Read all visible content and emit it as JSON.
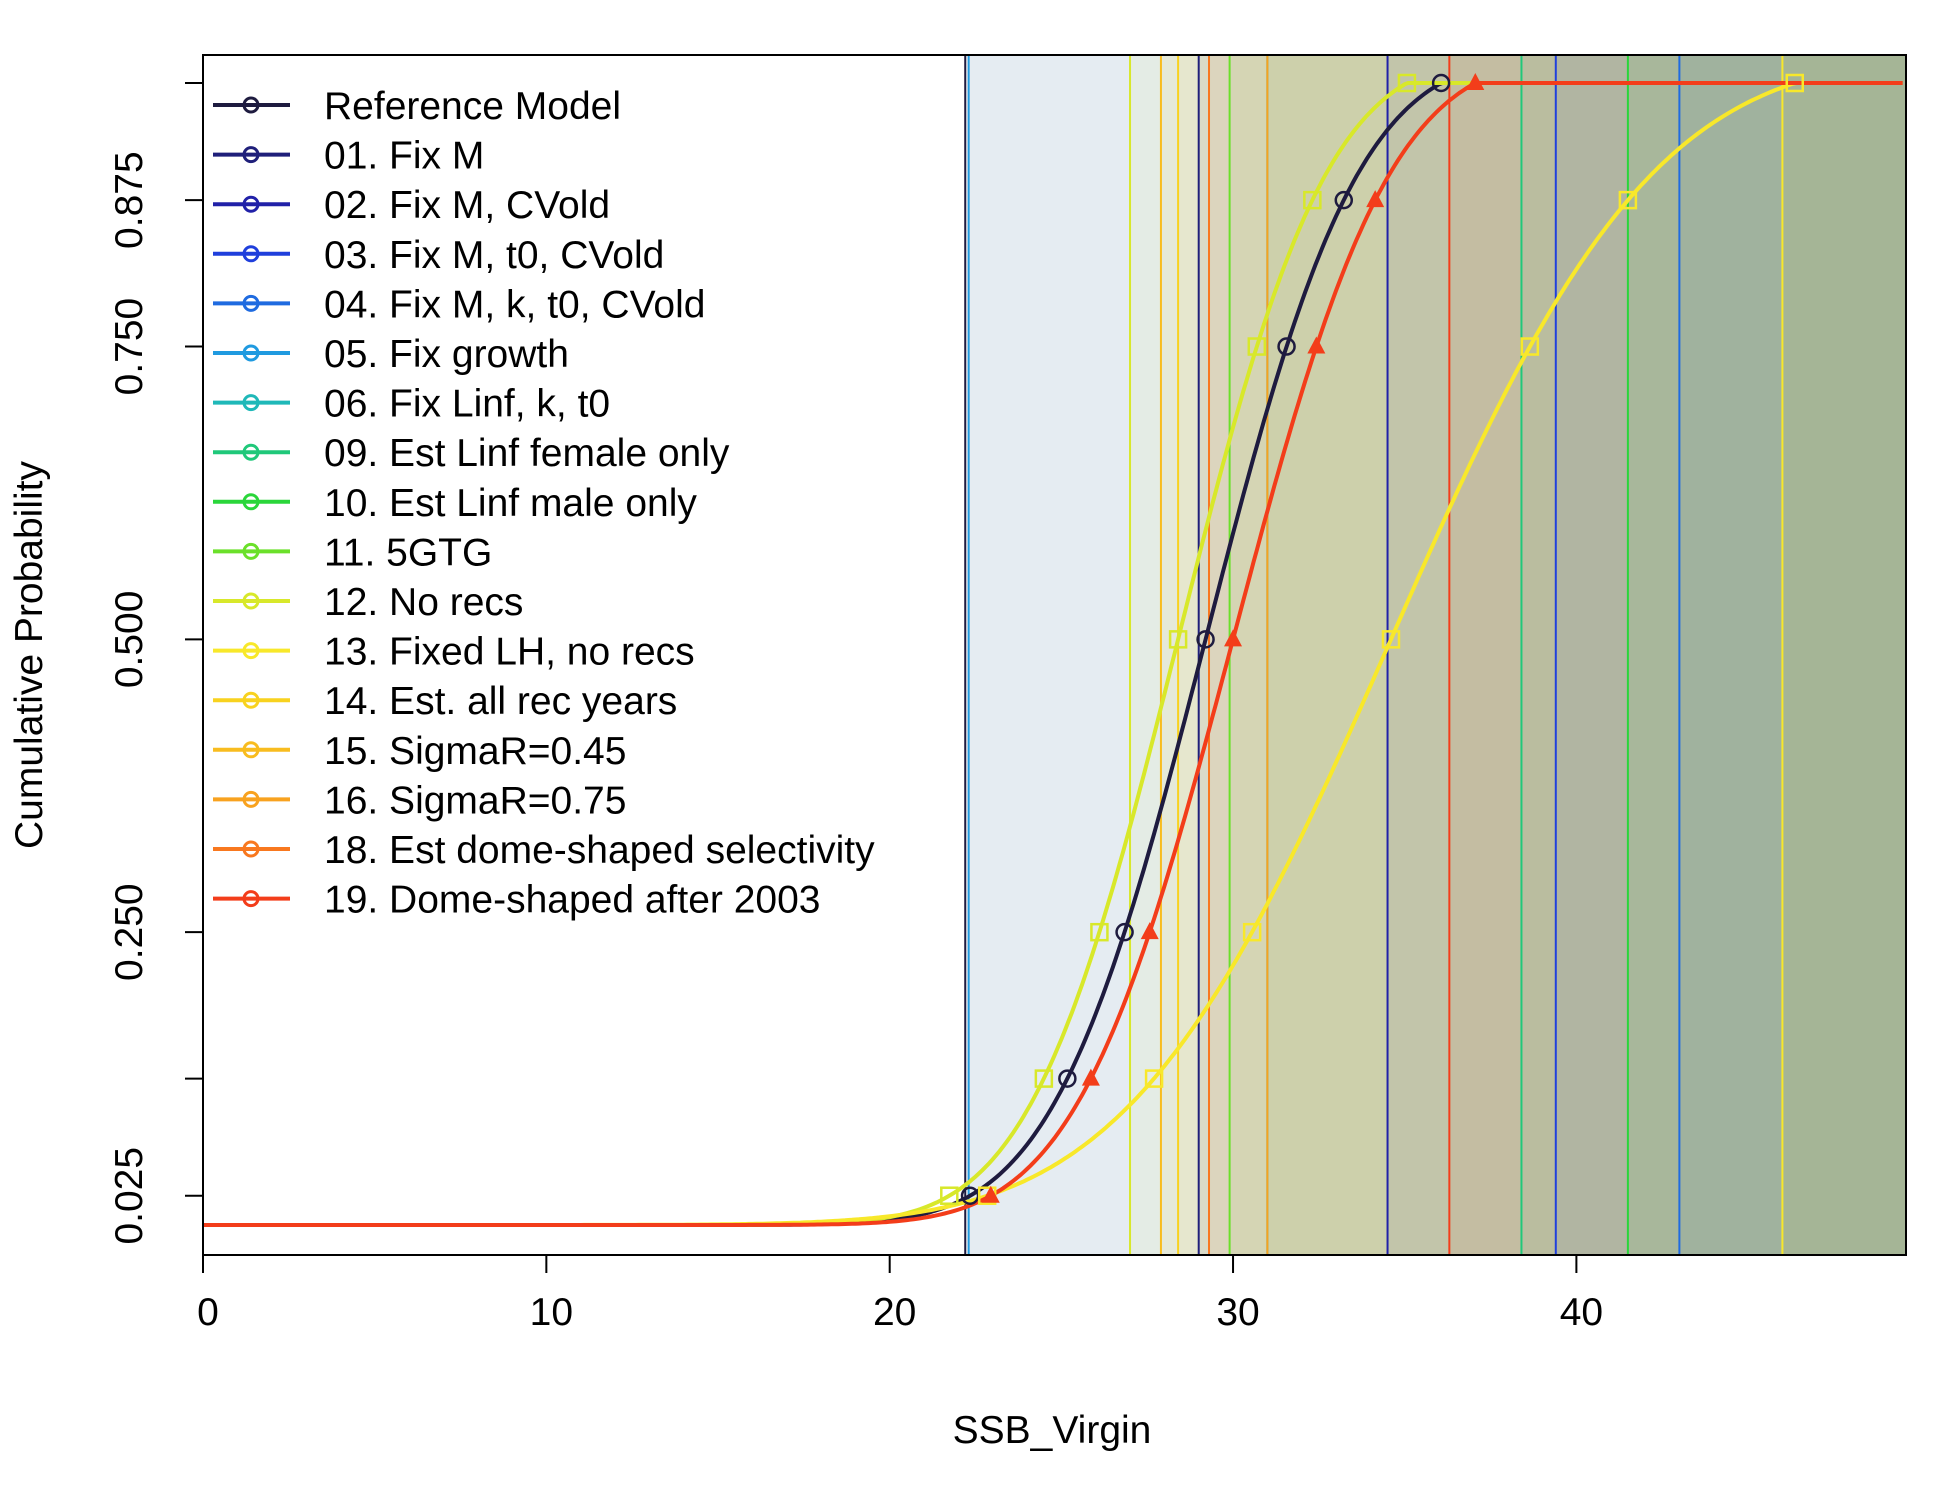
{
  "chart_data": {
    "type": "line",
    "title": "",
    "xlabel": "SSB_Virgin",
    "ylabel": "Cumulative Probability",
    "xlim": [
      0,
      49.6
    ],
    "ylim": [
      0,
      0.975
    ],
    "x_ticks": [
      0,
      10,
      20,
      30,
      40
    ],
    "x_tick_labels": [
      "0",
      "10",
      "20",
      "30",
      "40"
    ],
    "y_ticks": [
      0.025,
      0.25,
      0.5,
      0.75,
      0.875
    ],
    "y_tick_labels": [
      "0.025",
      "0.250",
      "0.500",
      "0.750",
      "0.875"
    ],
    "grid": false,
    "legend_position": "top-left",
    "quantile_markers": [
      0.025,
      0.125,
      0.25,
      0.5,
      0.75,
      0.875,
      0.975
    ],
    "series": [
      {
        "name": "Reference Model",
        "color": "#1e1b3f",
        "marker": "circle",
        "median": 29.2,
        "sd": 3.5,
        "x_cut": 22.2,
        "show_curve": true
      },
      {
        "name": "01. Fix M",
        "color": "#1f1f7a",
        "marker": "triangle-up",
        "median": 29.1,
        "sd": 3.5,
        "x_cut": 29.0,
        "show_curve": false
      },
      {
        "name": "02. Fix M, CVold",
        "color": "#2121a8",
        "marker": "plus",
        "median": 29.2,
        "sd": 3.5,
        "x_cut": 34.5,
        "show_curve": false
      },
      {
        "name": "03. Fix M, t0, CVold",
        "color": "#1f3fdc",
        "marker": "cross",
        "median": 29.3,
        "sd": 3.5,
        "x_cut": 39.4,
        "show_curve": false
      },
      {
        "name": "04. Fix M, k, t0, CVold",
        "color": "#1f6be0",
        "marker": "diamond",
        "median": 29.2,
        "sd": 3.5,
        "x_cut": 43.0,
        "show_curve": false
      },
      {
        "name": "05. Fix growth",
        "color": "#1f9ae0",
        "marker": "triangle-down",
        "median": 29.0,
        "sd": 3.5,
        "x_cut": 22.3,
        "show_curve": false
      },
      {
        "name": "06. Fix Linf, k, t0",
        "color": "#1fb8b8",
        "marker": "square-plus",
        "median": 29.1,
        "sd": 3.5,
        "x_cut": 31.0,
        "show_curve": false
      },
      {
        "name": "09. Est Linf female only",
        "color": "#20c87a",
        "marker": "asterisk",
        "median": 29.4,
        "sd": 3.5,
        "x_cut": 38.4,
        "show_curve": false
      },
      {
        "name": "10. Est Linf male only",
        "color": "#2ad63a",
        "marker": "diamond-plus",
        "median": 29.3,
        "sd": 3.5,
        "x_cut": 41.5,
        "show_curve": false
      },
      {
        "name": "11. 5GTG",
        "color": "#6be02a",
        "marker": "circle-plus",
        "median": 29.5,
        "sd": 3.5,
        "x_cut": 29.9,
        "show_curve": false
      },
      {
        "name": "12. No recs",
        "color": "#d8e82a",
        "marker": "star",
        "median": 28.4,
        "sd": 3.4,
        "x_cut": 27.0,
        "show_curve": true
      },
      {
        "name": "13. Fixed LH, no recs",
        "color": "#f8e82a",
        "marker": "square-cross",
        "median": 34.6,
        "sd": 6.0,
        "x_cut": 46.0,
        "show_curve": true
      },
      {
        "name": "14. Est. all rec years",
        "color": "#f8d21f",
        "marker": "square-filled",
        "median": 29.0,
        "sd": 3.5,
        "x_cut": 28.4,
        "show_curve": false
      },
      {
        "name": "15. SigmaR=0.45",
        "color": "#f8bc1f",
        "marker": "square-open",
        "median": 29.0,
        "sd": 3.5,
        "x_cut": 27.9,
        "show_curve": false
      },
      {
        "name": "16. SigmaR=0.75",
        "color": "#f8a21f",
        "marker": "square-filled",
        "median": 29.1,
        "sd": 3.5,
        "x_cut": 31.0,
        "show_curve": false
      },
      {
        "name": "18. Est dome-shaped selectivity",
        "color": "#f8781f",
        "marker": "circle-filled",
        "median": 29.4,
        "sd": 3.5,
        "x_cut": 29.3,
        "show_curve": false
      },
      {
        "name": "19. Dome-shaped after 2003",
        "color": "#f33d1a",
        "marker": "triangle-filled",
        "median": 30.0,
        "sd": 3.6,
        "x_cut": 36.3,
        "show_curve": true
      }
    ]
  }
}
